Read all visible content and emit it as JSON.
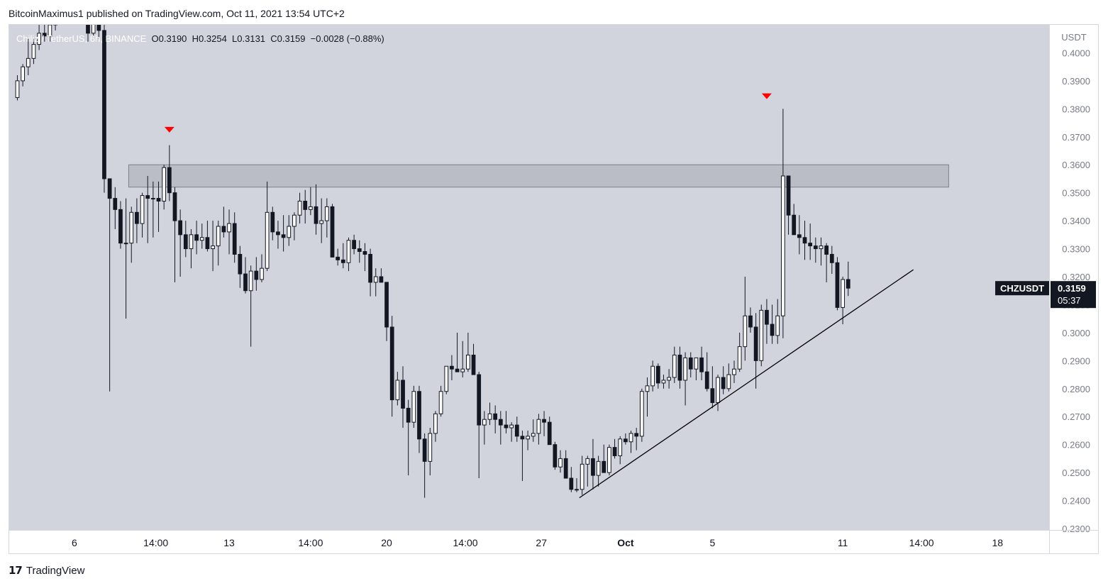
{
  "header": {
    "publisher_text": "BitcoinMaximus1 published on TradingView.com, Oct 11, 2021 13:54 UTC+2"
  },
  "symbol_bar": {
    "symbol": "Chiliz / TetherUS, 6h, BINANCE",
    "open_label": "O",
    "open_value": "0.3190",
    "high_label": "H",
    "high_value": "0.3254",
    "low_label": "L",
    "low_value": "0.3131",
    "close_label": "C",
    "close_value": "0.3159",
    "change": "−0.0028 (−0.88%)"
  },
  "price_label": {
    "ticker": "CHZUSDT",
    "price": "0.3159",
    "countdown": "05:37"
  },
  "footer": {
    "brand": "TradingView",
    "logo_icon": "tradingview-logo-icon"
  },
  "colors": {
    "background": "#d1d4dc",
    "up_body": "#ffffff",
    "down_body": "#131722",
    "resistance_zone": "#b2b5be",
    "marker": "#ff0000",
    "trendline": "#000000"
  },
  "chart_data": {
    "type": "candlestick",
    "currency_label": "USDT",
    "y_ticks": [
      "0.4000",
      "0.3900",
      "0.3800",
      "0.3700",
      "0.3600",
      "0.3500",
      "0.3400",
      "0.3300",
      "0.3200",
      "0.3100",
      "0.3000",
      "0.2900",
      "0.2800",
      "0.2700",
      "0.2600",
      "0.2500",
      "0.2400",
      "0.2300"
    ],
    "ylim": [
      0.2295,
      0.41
    ],
    "x_ticks": [
      {
        "label": "6",
        "index": 10.5,
        "bold": false
      },
      {
        "label": "14:00",
        "index": 25.5,
        "bold": false
      },
      {
        "label": "13",
        "index": 39,
        "bold": false
      },
      {
        "label": "14:00",
        "index": 54,
        "bold": false
      },
      {
        "label": "20",
        "index": 68,
        "bold": false
      },
      {
        "label": "14:00",
        "index": 82.5,
        "bold": false
      },
      {
        "label": "27",
        "index": 96.5,
        "bold": false
      },
      {
        "label": "Oct",
        "index": 112,
        "bold": true
      },
      {
        "label": "5",
        "index": 128,
        "bold": false
      },
      {
        "label": "11",
        "index": 152,
        "bold": false
      },
      {
        "label": "14:00",
        "index": 166.5,
        "bold": false
      },
      {
        "label": "18",
        "index": 180.5,
        "bold": false
      }
    ],
    "x_range": [
      -1.5,
      190
    ],
    "resistance_zone": {
      "from_index": 20.5,
      "to_index": 171.5,
      "low": 0.352,
      "high": 0.36
    },
    "markers": [
      {
        "index": 28,
        "price": 0.3725,
        "shape": "triangle-down"
      },
      {
        "index": 138,
        "price": 0.3845,
        "shape": "triangle-down"
      }
    ],
    "trendline": [
      {
        "index": 103.5,
        "price": 0.241
      },
      {
        "index": 165,
        "price": 0.3225
      }
    ],
    "candles": [
      [
        0.384,
        0.392,
        0.383,
        0.39
      ],
      [
        0.39,
        0.396,
        0.388,
        0.395
      ],
      [
        0.395,
        0.405,
        0.392,
        0.398
      ],
      [
        0.398,
        0.405,
        0.396,
        0.403
      ],
      [
        0.403,
        0.41,
        0.401,
        0.407
      ],
      [
        0.407,
        0.412,
        0.404,
        0.406
      ],
      [
        0.406,
        0.412,
        0.404,
        0.41
      ],
      [
        0.41,
        0.415,
        0.408,
        0.412
      ],
      [
        0.412,
        0.418,
        0.41,
        0.414
      ],
      [
        0.414,
        0.42,
        0.411,
        0.413
      ],
      [
        0.413,
        0.42,
        0.411,
        0.416
      ],
      [
        0.416,
        0.422,
        0.414,
        0.415
      ],
      [
        0.415,
        0.42,
        0.412,
        0.418
      ],
      [
        0.418,
        0.419,
        0.404,
        0.407
      ],
      [
        0.407,
        0.418,
        0.406,
        0.415
      ],
      [
        0.415,
        0.416,
        0.405,
        0.408
      ],
      [
        0.408,
        0.41,
        0.35,
        0.355
      ],
      [
        0.355,
        0.355,
        0.279,
        0.348
      ],
      [
        0.348,
        0.352,
        0.337,
        0.344
      ],
      [
        0.344,
        0.347,
        0.33,
        0.332
      ],
      [
        0.332,
        0.348,
        0.305,
        0.332
      ],
      [
        0.332,
        0.345,
        0.325,
        0.343
      ],
      [
        0.343,
        0.348,
        0.332,
        0.339
      ],
      [
        0.339,
        0.35,
        0.334,
        0.349
      ],
      [
        0.349,
        0.356,
        0.332,
        0.348
      ],
      [
        0.348,
        0.354,
        0.334,
        0.348
      ],
      [
        0.348,
        0.354,
        0.336,
        0.347
      ],
      [
        0.347,
        0.36,
        0.344,
        0.359
      ],
      [
        0.359,
        0.367,
        0.347,
        0.35
      ],
      [
        0.35,
        0.352,
        0.318,
        0.34
      ],
      [
        0.34,
        0.344,
        0.32,
        0.335
      ],
      [
        0.335,
        0.34,
        0.327,
        0.33
      ],
      [
        0.33,
        0.337,
        0.323,
        0.335
      ],
      [
        0.335,
        0.34,
        0.328,
        0.333
      ],
      [
        0.333,
        0.339,
        0.33,
        0.334
      ],
      [
        0.334,
        0.34,
        0.329,
        0.33
      ],
      [
        0.33,
        0.34,
        0.322,
        0.331
      ],
      [
        0.331,
        0.34,
        0.324,
        0.338
      ],
      [
        0.338,
        0.345,
        0.334,
        0.336
      ],
      [
        0.336,
        0.344,
        0.328,
        0.339
      ],
      [
        0.339,
        0.343,
        0.325,
        0.328
      ],
      [
        0.328,
        0.331,
        0.316,
        0.321
      ],
      [
        0.321,
        0.327,
        0.314,
        0.315
      ],
      [
        0.315,
        0.324,
        0.295,
        0.322
      ],
      [
        0.322,
        0.327,
        0.315,
        0.319
      ],
      [
        0.319,
        0.328,
        0.318,
        0.323
      ],
      [
        0.323,
        0.354,
        0.322,
        0.343
      ],
      [
        0.343,
        0.345,
        0.333,
        0.336
      ],
      [
        0.336,
        0.34,
        0.33,
        0.335
      ],
      [
        0.335,
        0.342,
        0.329,
        0.334
      ],
      [
        0.334,
        0.342,
        0.331,
        0.338
      ],
      [
        0.338,
        0.343,
        0.333,
        0.342
      ],
      [
        0.342,
        0.35,
        0.339,
        0.347
      ],
      [
        0.347,
        0.351,
        0.339,
        0.344
      ],
      [
        0.344,
        0.352,
        0.342,
        0.345
      ],
      [
        0.345,
        0.353,
        0.335,
        0.339
      ],
      [
        0.339,
        0.348,
        0.332,
        0.34
      ],
      [
        0.34,
        0.348,
        0.334,
        0.345
      ],
      [
        0.345,
        0.346,
        0.327,
        0.327
      ],
      [
        0.327,
        0.33,
        0.324,
        0.326
      ],
      [
        0.326,
        0.332,
        0.323,
        0.325
      ],
      [
        0.325,
        0.334,
        0.322,
        0.333
      ],
      [
        0.333,
        0.335,
        0.328,
        0.33
      ],
      [
        0.33,
        0.333,
        0.325,
        0.329
      ],
      [
        0.329,
        0.332,
        0.322,
        0.328
      ],
      [
        0.328,
        0.33,
        0.313,
        0.318
      ],
      [
        0.318,
        0.323,
        0.313,
        0.32
      ],
      [
        0.32,
        0.323,
        0.318,
        0.318
      ],
      [
        0.318,
        0.318,
        0.297,
        0.302
      ],
      [
        0.302,
        0.306,
        0.27,
        0.276
      ],
      [
        0.276,
        0.286,
        0.274,
        0.283
      ],
      [
        0.283,
        0.288,
        0.266,
        0.273
      ],
      [
        0.273,
        0.276,
        0.249,
        0.268
      ],
      [
        0.268,
        0.281,
        0.266,
        0.279
      ],
      [
        0.279,
        0.281,
        0.257,
        0.262
      ],
      [
        0.262,
        0.264,
        0.241,
        0.254
      ],
      [
        0.254,
        0.266,
        0.249,
        0.264
      ],
      [
        0.264,
        0.272,
        0.261,
        0.271
      ],
      [
        0.271,
        0.281,
        0.27,
        0.279
      ],
      [
        0.279,
        0.288,
        0.278,
        0.288
      ],
      [
        0.288,
        0.292,
        0.283,
        0.287
      ],
      [
        0.287,
        0.3,
        0.286,
        0.286
      ],
      [
        0.286,
        0.297,
        0.284,
        0.287
      ],
      [
        0.287,
        0.3,
        0.286,
        0.292
      ],
      [
        0.292,
        0.296,
        0.285,
        0.285
      ],
      [
        0.285,
        0.286,
        0.248,
        0.267
      ],
      [
        0.267,
        0.272,
        0.26,
        0.269
      ],
      [
        0.269,
        0.275,
        0.267,
        0.271
      ],
      [
        0.271,
        0.274,
        0.264,
        0.269
      ],
      [
        0.269,
        0.272,
        0.26,
        0.267
      ],
      [
        0.267,
        0.272,
        0.264,
        0.266
      ],
      [
        0.266,
        0.268,
        0.261,
        0.267
      ],
      [
        0.267,
        0.27,
        0.261,
        0.263
      ],
      [
        0.263,
        0.265,
        0.247,
        0.262
      ],
      [
        0.262,
        0.265,
        0.258,
        0.263
      ],
      [
        0.263,
        0.269,
        0.261,
        0.264
      ],
      [
        0.264,
        0.271,
        0.26,
        0.269
      ],
      [
        0.269,
        0.272,
        0.263,
        0.268
      ],
      [
        0.268,
        0.27,
        0.261,
        0.26
      ],
      [
        0.26,
        0.261,
        0.251,
        0.252
      ],
      [
        0.252,
        0.258,
        0.25,
        0.255
      ],
      [
        0.255,
        0.258,
        0.249,
        0.248
      ],
      [
        0.248,
        0.252,
        0.243,
        0.244
      ],
      [
        0.244,
        0.248,
        0.243,
        0.244
      ],
      [
        0.244,
        0.256,
        0.242,
        0.253
      ],
      [
        0.253,
        0.256,
        0.245,
        0.255
      ],
      [
        0.255,
        0.262,
        0.244,
        0.249
      ],
      [
        0.249,
        0.256,
        0.245,
        0.254
      ],
      [
        0.254,
        0.26,
        0.251,
        0.25
      ],
      [
        0.25,
        0.26,
        0.249,
        0.259
      ],
      [
        0.259,
        0.262,
        0.255,
        0.256
      ],
      [
        0.256,
        0.263,
        0.253,
        0.262
      ],
      [
        0.262,
        0.264,
        0.26,
        0.261
      ],
      [
        0.261,
        0.265,
        0.257,
        0.264
      ],
      [
        0.264,
        0.266,
        0.258,
        0.263
      ],
      [
        0.263,
        0.28,
        0.261,
        0.279
      ],
      [
        0.279,
        0.284,
        0.27,
        0.281
      ],
      [
        0.281,
        0.29,
        0.279,
        0.288
      ],
      [
        0.288,
        0.289,
        0.28,
        0.282
      ],
      [
        0.282,
        0.285,
        0.28,
        0.283
      ],
      [
        0.283,
        0.287,
        0.28,
        0.284
      ],
      [
        0.284,
        0.295,
        0.282,
        0.292
      ],
      [
        0.292,
        0.295,
        0.28,
        0.283
      ],
      [
        0.283,
        0.293,
        0.274,
        0.291
      ],
      [
        0.291,
        0.293,
        0.284,
        0.287
      ],
      [
        0.287,
        0.29,
        0.283,
        0.291
      ],
      [
        0.291,
        0.295,
        0.283,
        0.286
      ],
      [
        0.286,
        0.293,
        0.279,
        0.28
      ],
      [
        0.28,
        0.288,
        0.273,
        0.275
      ],
      [
        0.275,
        0.285,
        0.272,
        0.284
      ],
      [
        0.284,
        0.288,
        0.278,
        0.28
      ],
      [
        0.28,
        0.289,
        0.279,
        0.285
      ],
      [
        0.285,
        0.29,
        0.282,
        0.287
      ],
      [
        0.287,
        0.3,
        0.286,
        0.295
      ],
      [
        0.295,
        0.32,
        0.29,
        0.306
      ],
      [
        0.306,
        0.309,
        0.3,
        0.302
      ],
      [
        0.302,
        0.307,
        0.28,
        0.29
      ],
      [
        0.29,
        0.31,
        0.288,
        0.308
      ],
      [
        0.308,
        0.312,
        0.296,
        0.303
      ],
      [
        0.303,
        0.31,
        0.296,
        0.299
      ],
      [
        0.299,
        0.312,
        0.296,
        0.306
      ],
      [
        0.306,
        0.38,
        0.298,
        0.356
      ],
      [
        0.356,
        0.356,
        0.335,
        0.342
      ],
      [
        0.342,
        0.346,
        0.335,
        0.335
      ],
      [
        0.335,
        0.342,
        0.328,
        0.334
      ],
      [
        0.334,
        0.34,
        0.326,
        0.332
      ],
      [
        0.332,
        0.339,
        0.326,
        0.331
      ],
      [
        0.331,
        0.334,
        0.325,
        0.33
      ],
      [
        0.33,
        0.334,
        0.324,
        0.331
      ],
      [
        0.331,
        0.332,
        0.318,
        0.328
      ],
      [
        0.328,
        0.331,
        0.321,
        0.325
      ],
      [
        0.325,
        0.327,
        0.308,
        0.309
      ],
      [
        0.309,
        0.32,
        0.303,
        0.319
      ],
      [
        0.319,
        0.3254,
        0.3131,
        0.3159
      ]
    ]
  }
}
